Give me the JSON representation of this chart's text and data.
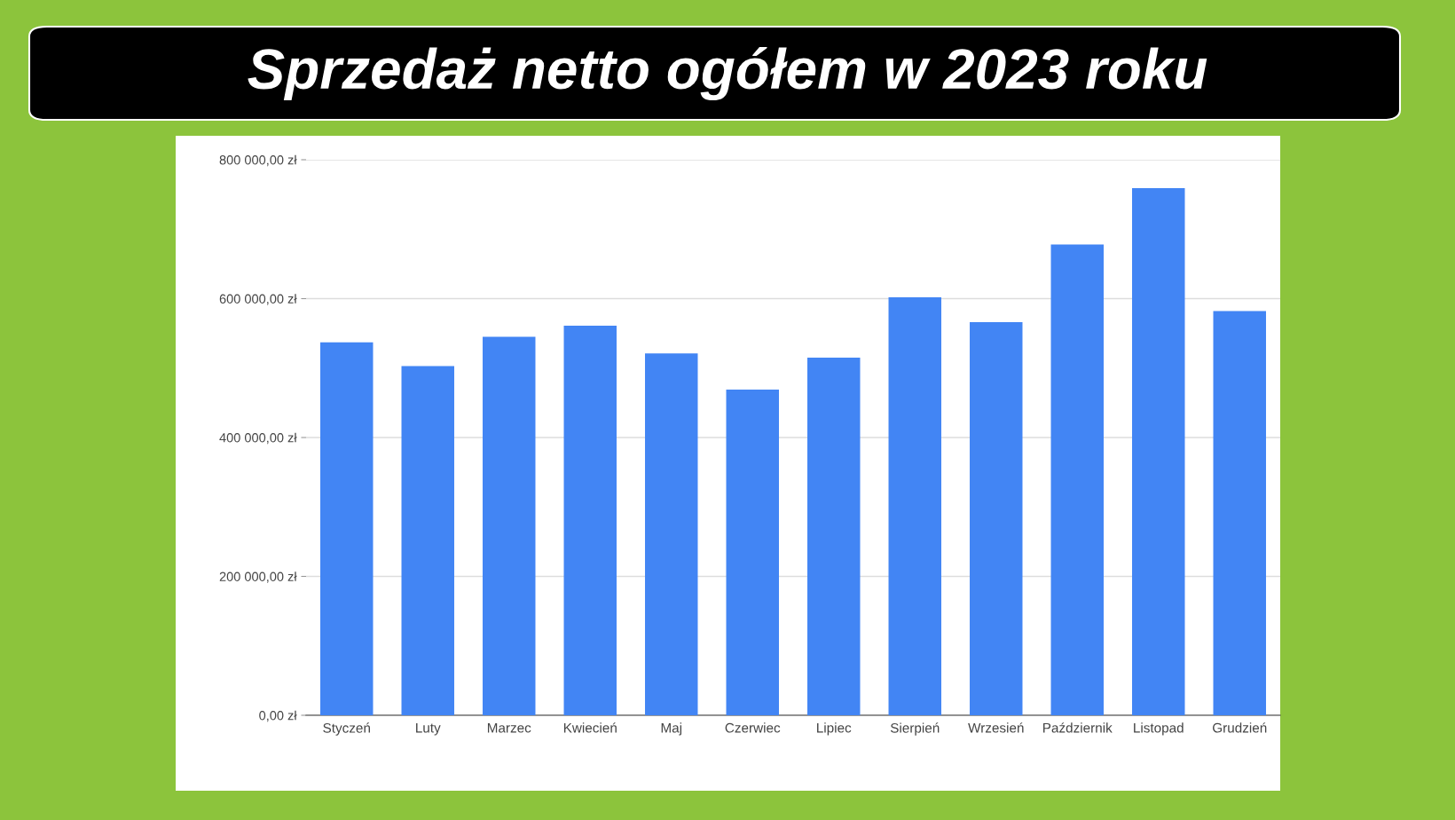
{
  "chart_data": {
    "type": "bar",
    "title": "Sprzedaż netto ogółem w 2023 roku",
    "categories": [
      "Styczeń",
      "Luty",
      "Marzec",
      "Kwiecień",
      "Maj",
      "Czerwiec",
      "Lipiec",
      "Sierpień",
      "Wrzesień",
      "Październik",
      "Listopad",
      "Grudzień"
    ],
    "values": [
      537000,
      503000,
      545000,
      561000,
      521000,
      469000,
      515000,
      602000,
      566000,
      678000,
      759000,
      582000
    ],
    "color": "#4285f4",
    "ylim": [
      0,
      800000
    ],
    "yticks": [
      {
        "value": 0,
        "label": "0,00 zł"
      },
      {
        "value": 200000,
        "label": "200 000,00 zł"
      },
      {
        "value": 400000,
        "label": "400 000,00 zł"
      },
      {
        "value": 600000,
        "label": "600 000,00 zł"
      },
      {
        "value": 800000,
        "label": "800 000,00 zł"
      }
    ],
    "grid": "y"
  }
}
